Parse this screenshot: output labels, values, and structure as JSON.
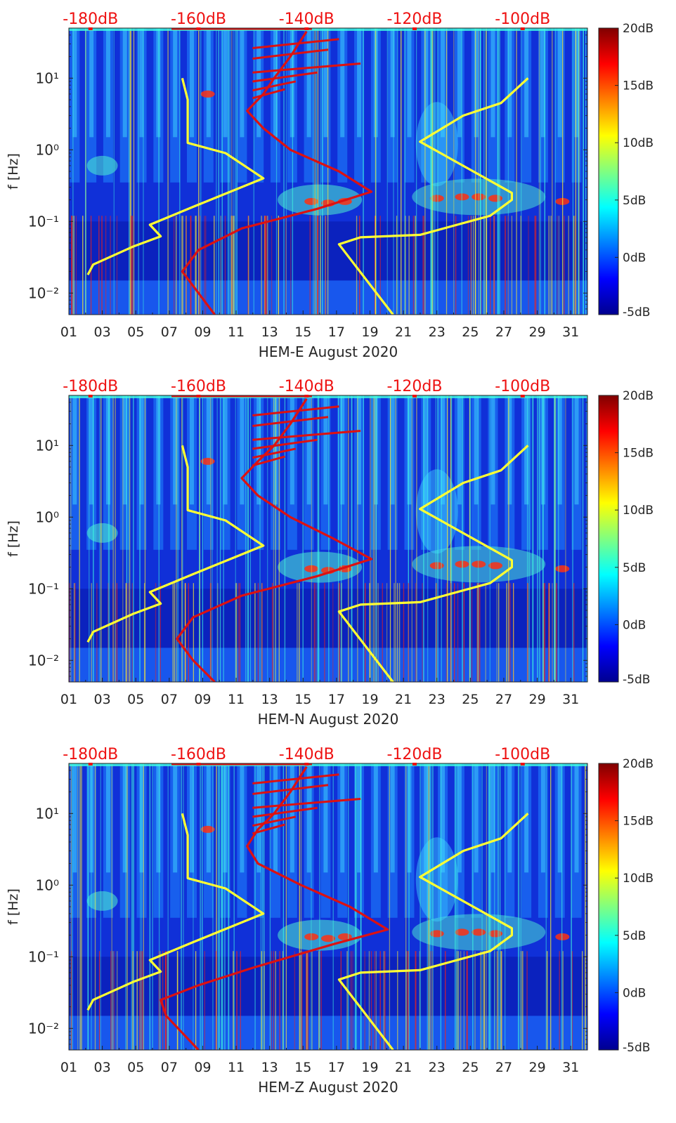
{
  "colorbar_ticks": [
    "20dB",
    "15dB",
    "10dB",
    "5dB",
    "0dB",
    "-5dB"
  ],
  "colorbar_range_db": [
    -5,
    20
  ],
  "colormap": [
    "#00008f",
    "#0000ff",
    "#0080ff",
    "#00ffff",
    "#80ff80",
    "#ffff00",
    "#ff8000",
    "#ff0000",
    "#800000"
  ],
  "noise_model_color": "#ffff33",
  "station_curve_color": "#dd1111",
  "top_scale_color": "#ee1111",
  "chart_data": [
    {
      "type": "heatmap",
      "xlabel": "HEM-E August 2020",
      "ylabel": "f [Hz]",
      "x_ticks": [
        "01",
        "03",
        "05",
        "07",
        "09",
        "11",
        "13",
        "15",
        "17",
        "19",
        "21",
        "23",
        "25",
        "27",
        "29",
        "31"
      ],
      "y_ticks": [
        "10¹",
        "10⁰",
        "10⁻¹",
        "10⁻²"
      ],
      "top_axis_ticks": [
        "-180dB",
        "-160dB",
        "-140dB",
        "-120dB",
        "-100dB"
      ],
      "yscale": "log",
      "ylim": [
        0.005,
        50
      ],
      "xlim": [
        1,
        32
      ],
      "top_axis_range_db": [
        -184,
        -88
      ],
      "colorbar_range_db": [
        -5,
        20
      ],
      "grid": false,
      "series": [
        {
          "points": [
            [
              0.018,
              -180.5
            ],
            [
              0.025,
              -179.5
            ],
            [
              0.045,
              -172
            ],
            [
              0.062,
              -167
            ],
            [
              0.09,
              -169
            ],
            [
              0.16,
              -161
            ],
            [
              0.4,
              -148
            ],
            [
              0.9,
              -155
            ],
            [
              1.25,
              -162
            ],
            [
              2.5,
              -162
            ],
            [
              5,
              -162
            ],
            [
              10,
              -163
            ]
          ]
        },
        {
          "points": [
            [
              0.005,
              -157
            ],
            [
              0.01,
              -160
            ],
            [
              0.02,
              -163
            ],
            [
              0.04,
              -160
            ],
            [
              0.08,
              -152
            ],
            [
              0.15,
              -138
            ],
            [
              0.26,
              -128
            ],
            [
              0.5,
              -134
            ],
            [
              1,
              -143
            ],
            [
              2,
              -148
            ],
            [
              3.5,
              -151
            ],
            [
              6,
              -148
            ],
            [
              10,
              -146
            ],
            [
              20,
              -143
            ],
            [
              45,
              -140
            ]
          ]
        },
        {
          "points": [
            [
              0.005,
              -124
            ],
            [
              0.048,
              -134
            ],
            [
              0.06,
              -130
            ],
            [
              0.065,
              -119
            ],
            [
              0.12,
              -106
            ],
            [
              0.2,
              -102
            ],
            [
              0.25,
              -102
            ],
            [
              1.3,
              -119
            ],
            [
              3,
              -111
            ],
            [
              4.5,
              -104
            ],
            [
              10,
              -99
            ]
          ]
        }
      ]
    },
    {
      "type": "heatmap",
      "xlabel": "HEM-N August 2020",
      "ylabel": "f [Hz]",
      "x_ticks": [
        "01",
        "03",
        "05",
        "07",
        "09",
        "11",
        "13",
        "15",
        "17",
        "19",
        "21",
        "23",
        "25",
        "27",
        "29",
        "31"
      ],
      "y_ticks": [
        "10¹",
        "10⁰",
        "10⁻¹",
        "10⁻²"
      ],
      "top_axis_ticks": [
        "-180dB",
        "-160dB",
        "-140dB",
        "-120dB",
        "-100dB"
      ],
      "yscale": "log",
      "ylim": [
        0.005,
        50
      ],
      "xlim": [
        1,
        32
      ],
      "top_axis_range_db": [
        -184,
        -88
      ],
      "colorbar_range_db": [
        -5,
        20
      ],
      "grid": false,
      "series": [
        {
          "points": [
            [
              0.018,
              -180.5
            ],
            [
              0.025,
              -179.5
            ],
            [
              0.045,
              -172
            ],
            [
              0.062,
              -167
            ],
            [
              0.09,
              -169
            ],
            [
              0.16,
              -161
            ],
            [
              0.4,
              -148
            ],
            [
              0.9,
              -155
            ],
            [
              1.25,
              -162
            ],
            [
              2.5,
              -162
            ],
            [
              5,
              -162
            ],
            [
              10,
              -163
            ]
          ]
        },
        {
          "points": [
            [
              0.005,
              -157
            ],
            [
              0.01,
              -161
            ],
            [
              0.02,
              -164
            ],
            [
              0.04,
              -161
            ],
            [
              0.08,
              -152
            ],
            [
              0.15,
              -138
            ],
            [
              0.26,
              -128
            ],
            [
              0.5,
              -135
            ],
            [
              1,
              -143
            ],
            [
              2,
              -149
            ],
            [
              3.5,
              -152
            ],
            [
              6,
              -149
            ],
            [
              10,
              -146
            ],
            [
              20,
              -143
            ],
            [
              45,
              -140
            ]
          ]
        },
        {
          "points": [
            [
              0.005,
              -124
            ],
            [
              0.048,
              -134
            ],
            [
              0.06,
              -130
            ],
            [
              0.065,
              -119
            ],
            [
              0.12,
              -106
            ],
            [
              0.2,
              -102
            ],
            [
              0.25,
              -102
            ],
            [
              1.3,
              -119
            ],
            [
              3,
              -111
            ],
            [
              4.5,
              -104
            ],
            [
              10,
              -99
            ]
          ]
        }
      ]
    },
    {
      "type": "heatmap",
      "xlabel": "HEM-Z August 2020",
      "ylabel": "f [Hz]",
      "x_ticks": [
        "01",
        "03",
        "05",
        "07",
        "09",
        "11",
        "13",
        "15",
        "17",
        "19",
        "21",
        "23",
        "25",
        "27",
        "29",
        "31"
      ],
      "y_ticks": [
        "10¹",
        "10⁰",
        "10⁻¹",
        "10⁻²"
      ],
      "top_axis_ticks": [
        "-180dB",
        "-160dB",
        "-140dB",
        "-120dB",
        "-100dB"
      ],
      "yscale": "log",
      "ylim": [
        0.005,
        50
      ],
      "xlim": [
        1,
        32
      ],
      "top_axis_range_db": [
        -184,
        -88
      ],
      "colorbar_range_db": [
        -5,
        20
      ],
      "grid": false,
      "series": [
        {
          "points": [
            [
              0.018,
              -180.5
            ],
            [
              0.025,
              -179.5
            ],
            [
              0.045,
              -172
            ],
            [
              0.062,
              -167
            ],
            [
              0.09,
              -169
            ],
            [
              0.16,
              -161
            ],
            [
              0.4,
              -148
            ],
            [
              0.9,
              -155
            ],
            [
              1.25,
              -162
            ],
            [
              2.5,
              -162
            ],
            [
              5,
              -162
            ],
            [
              10,
              -163
            ]
          ]
        },
        {
          "points": [
            [
              0.005,
              -160
            ],
            [
              0.015,
              -166
            ],
            [
              0.025,
              -167
            ],
            [
              0.04,
              -160
            ],
            [
              0.07,
              -150
            ],
            [
              0.15,
              -135
            ],
            [
              0.24,
              -125
            ],
            [
              0.5,
              -132
            ],
            [
              1,
              -141
            ],
            [
              2,
              -149
            ],
            [
              3.5,
              -151
            ],
            [
              6,
              -149
            ],
            [
              10,
              -146
            ],
            [
              20,
              -143
            ],
            [
              45,
              -140
            ]
          ]
        },
        {
          "points": [
            [
              0.005,
              -124
            ],
            [
              0.048,
              -134
            ],
            [
              0.06,
              -130
            ],
            [
              0.065,
              -119
            ],
            [
              0.12,
              -106
            ],
            [
              0.2,
              -102
            ],
            [
              0.25,
              -102
            ],
            [
              1.3,
              -119
            ],
            [
              3,
              -111
            ],
            [
              4.5,
              -104
            ],
            [
              10,
              -99
            ]
          ]
        }
      ]
    }
  ]
}
